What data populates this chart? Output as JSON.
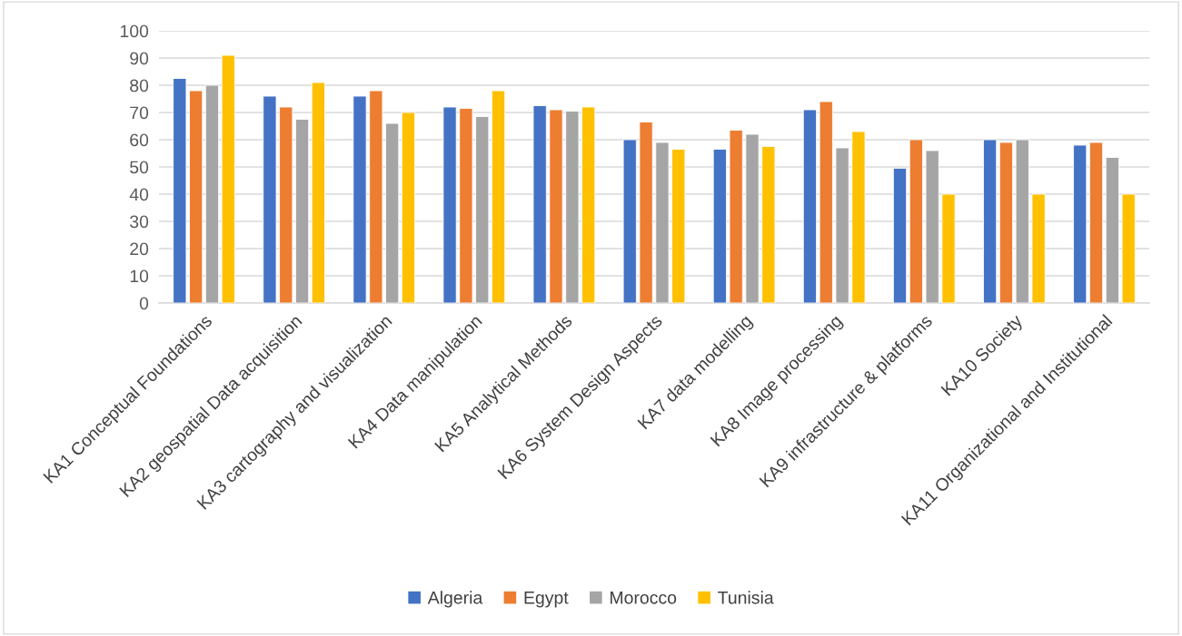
{
  "chart_data": {
    "type": "bar",
    "categories": [
      "KA1 Conceptual Foundations",
      "KA2 geospatial Data acquisition",
      "KA3 cartography and visualization",
      "KA4 Data manipulation",
      "KA5 Analytical Methods",
      "KA6 System Design Aspects",
      "KA7 data modelling",
      "KA8 Image processing",
      "KA9 infrastructure & platforms",
      "KA10 Society",
      "KA11 Organizational and Institutional"
    ],
    "series": [
      {
        "name": "Algeria",
        "color": "#4472c4",
        "values": [
          82.5,
          76,
          76,
          72,
          72.5,
          60,
          56.5,
          71,
          49.5,
          60,
          58
        ]
      },
      {
        "name": "Egypt",
        "color": "#ed7d31",
        "values": [
          78,
          72,
          78,
          71.5,
          71,
          66.5,
          63.5,
          74,
          60,
          59,
          59
        ]
      },
      {
        "name": "Morocco",
        "color": "#a5a5a5",
        "values": [
          80,
          67.5,
          66,
          68.5,
          70.5,
          59,
          62,
          57,
          56,
          60,
          53.5
        ]
      },
      {
        "name": "Tunisia",
        "color": "#ffc000",
        "values": [
          91,
          81,
          70,
          78,
          72,
          56.5,
          57.5,
          63,
          40,
          40,
          40
        ]
      }
    ],
    "ylim": [
      0,
      100
    ],
    "yticks": [
      0,
      10,
      20,
      30,
      40,
      50,
      60,
      70,
      80,
      90,
      100
    ],
    "grid": "y",
    "legend": "bottom"
  }
}
